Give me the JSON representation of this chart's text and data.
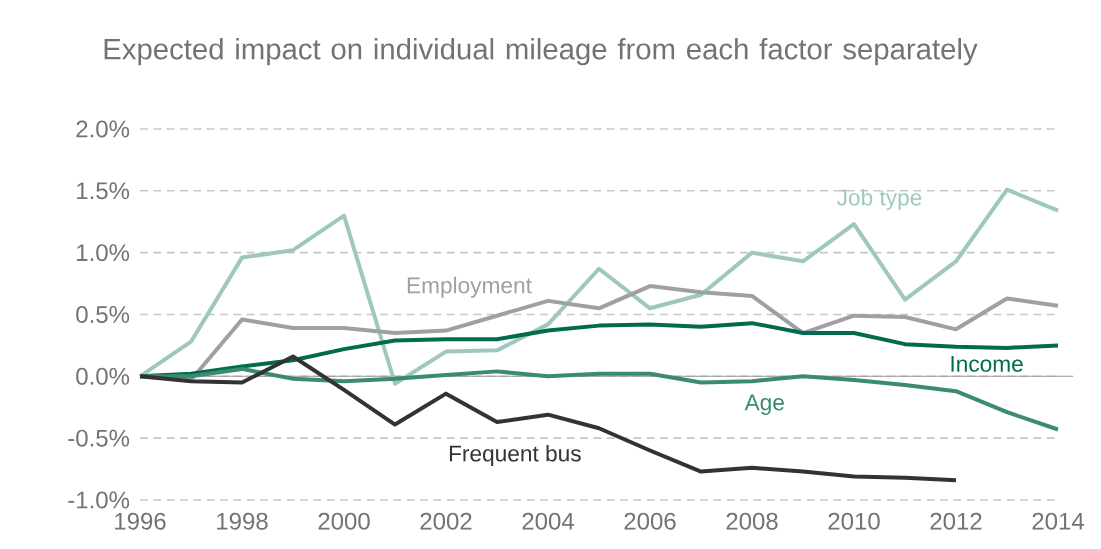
{
  "chart_data": {
    "type": "line",
    "title": "Expected impact on individual mileage from each factor separately",
    "x": [
      1996,
      1997,
      1998,
      1999,
      2000,
      2001,
      2002,
      2003,
      2004,
      2005,
      2006,
      2007,
      2008,
      2009,
      2010,
      2011,
      2012,
      2013,
      2014
    ],
    "series": [
      {
        "name": "Job type",
        "color": "#9ec8bc",
        "values": [
          0,
          0.28,
          0.96,
          1.02,
          1.3,
          -0.06,
          0.2,
          0.21,
          0.42,
          0.87,
          0.55,
          0.66,
          1.0,
          0.93,
          1.23,
          0.62,
          0.93,
          1.51,
          1.34
        ]
      },
      {
        "name": "Employment",
        "color": "#a0a0a4",
        "values": [
          0,
          -0.03,
          0.46,
          0.39,
          0.39,
          0.35,
          0.37,
          0.49,
          0.61,
          0.55,
          0.73,
          0.68,
          0.65,
          0.35,
          0.49,
          0.48,
          0.38,
          0.63,
          0.57
        ]
      },
      {
        "name": "Income",
        "color": "#006b4f",
        "values": [
          0,
          0.02,
          0.08,
          0.13,
          0.22,
          0.29,
          0.3,
          0.3,
          0.37,
          0.41,
          0.42,
          0.4,
          0.43,
          0.35,
          0.35,
          0.26,
          0.24,
          0.23,
          0.25
        ]
      },
      {
        "name": "Age",
        "color": "#3a8a74",
        "values": [
          0,
          0.0,
          0.06,
          -0.02,
          -0.04,
          -0.02,
          0.01,
          0.04,
          0.0,
          0.02,
          0.02,
          -0.05,
          -0.04,
          0.0,
          -0.03,
          -0.07,
          -0.12,
          -0.29,
          -0.43
        ]
      },
      {
        "name": "Frequent bus",
        "color": "#333333",
        "values": [
          0,
          -0.04,
          -0.05,
          0.16,
          -0.11,
          -0.39,
          -0.14,
          -0.37,
          -0.31,
          -0.42,
          -0.6,
          -0.77,
          -0.74,
          -0.77,
          -0.81,
          -0.82,
          -0.84,
          null,
          null
        ]
      }
    ],
    "xlim": [
      1996,
      2014
    ],
    "xticks": [
      1996,
      1998,
      2000,
      2002,
      2004,
      2006,
      2008,
      2010,
      2012,
      2014
    ],
    "ylim": [
      -1.0,
      2.0
    ],
    "yticks": [
      {
        "value": -1.0,
        "label": "-1.0%"
      },
      {
        "value": -0.5,
        "label": "-0.5%"
      },
      {
        "value": 0.0,
        "label": "0.0%"
      },
      {
        "value": 0.5,
        "label": "0.5%"
      },
      {
        "value": 1.0,
        "label": "1.0%"
      },
      {
        "value": 1.5,
        "label": "1.5%"
      },
      {
        "value": 2.0,
        "label": "2.0%"
      }
    ],
    "grid": "y",
    "legend": false,
    "marker": "none",
    "line_style": "solid"
  }
}
